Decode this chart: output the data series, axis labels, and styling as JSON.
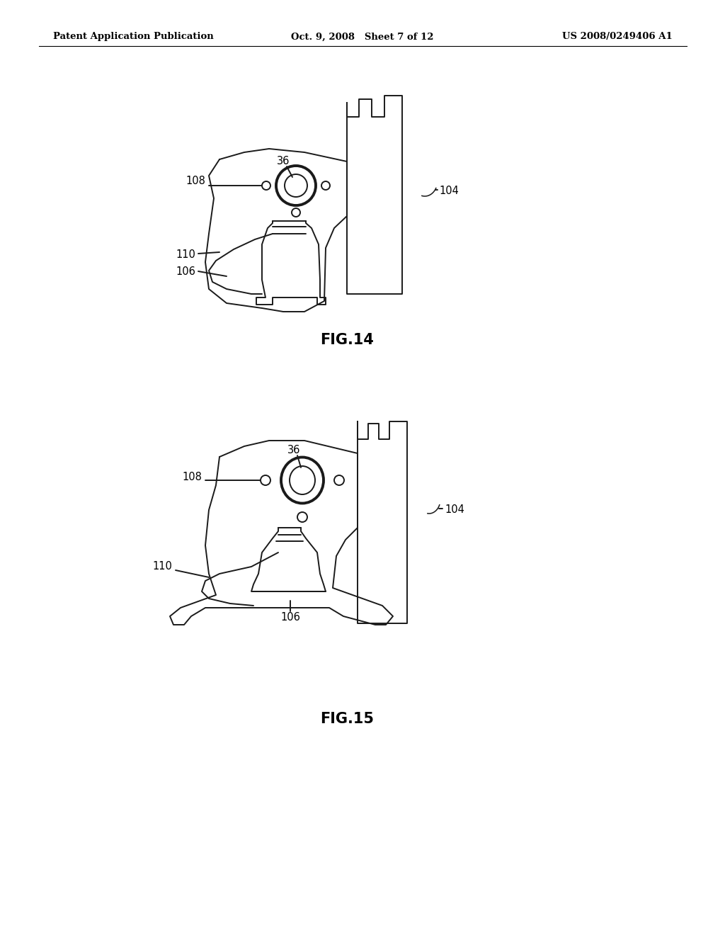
{
  "background_color": "#ffffff",
  "header_left": "Patent Application Publication",
  "header_center": "Oct. 9, 2008   Sheet 7 of 12",
  "header_right": "US 2008/0249406 A1",
  "fig14_label": "FIG.14",
  "fig15_label": "FIG.15",
  "line_color": "#1a1a1a",
  "line_width": 1.4,
  "label_fontsize": 10.5,
  "header_fontsize": 9.5,
  "fig_label_fontsize": 15
}
